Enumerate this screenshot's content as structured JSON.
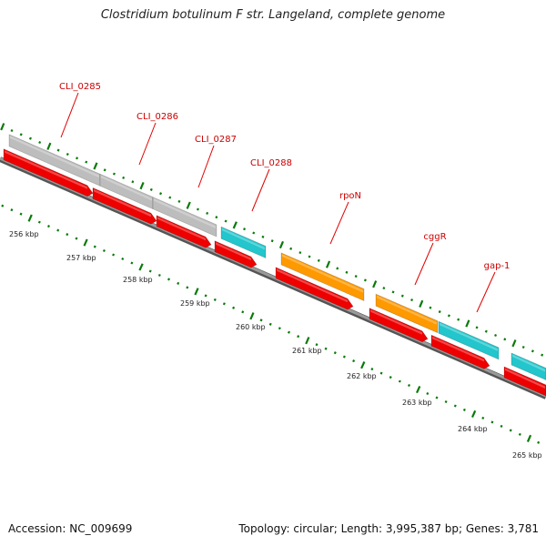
{
  "title": "Clostridium botulinum F str. Langeland, complete genome",
  "footer": {
    "accession": "Accession: NC_009699",
    "summary": "Topology: circular; Length: 3,995,387 bp; Genes: 3,781"
  },
  "colors": {
    "label": "#cc0000",
    "label_line": "#e00000",
    "tick": "#0a7a0a",
    "backbone": "#7a7a7a",
    "strand_minus": "#ee0000",
    "gene_grey": "#bdbdbd",
    "gene_cyan": "#22c6cc",
    "gene_orange": "#ff9900"
  },
  "genes": [
    {
      "name": "CLI_0285",
      "color": "gene_grey"
    },
    {
      "name": "CLI_0286",
      "color": "gene_grey"
    },
    {
      "name": "CLI_0287",
      "color": "gene_grey"
    },
    {
      "name": "CLI_0288",
      "color": "gene_cyan"
    },
    {
      "name": "rpoN",
      "color": "gene_orange"
    },
    {
      "name": "cggR",
      "color": "gene_orange"
    },
    {
      "name": "gap-1",
      "color": "gene_cyan"
    }
  ],
  "scale_labels": [
    "256 kbp",
    "257 kbp",
    "258 kbp",
    "259 kbp",
    "260 kbp",
    "261 kbp",
    "262 kbp",
    "263 kbp",
    "264 kbp",
    "265 kbp"
  ]
}
